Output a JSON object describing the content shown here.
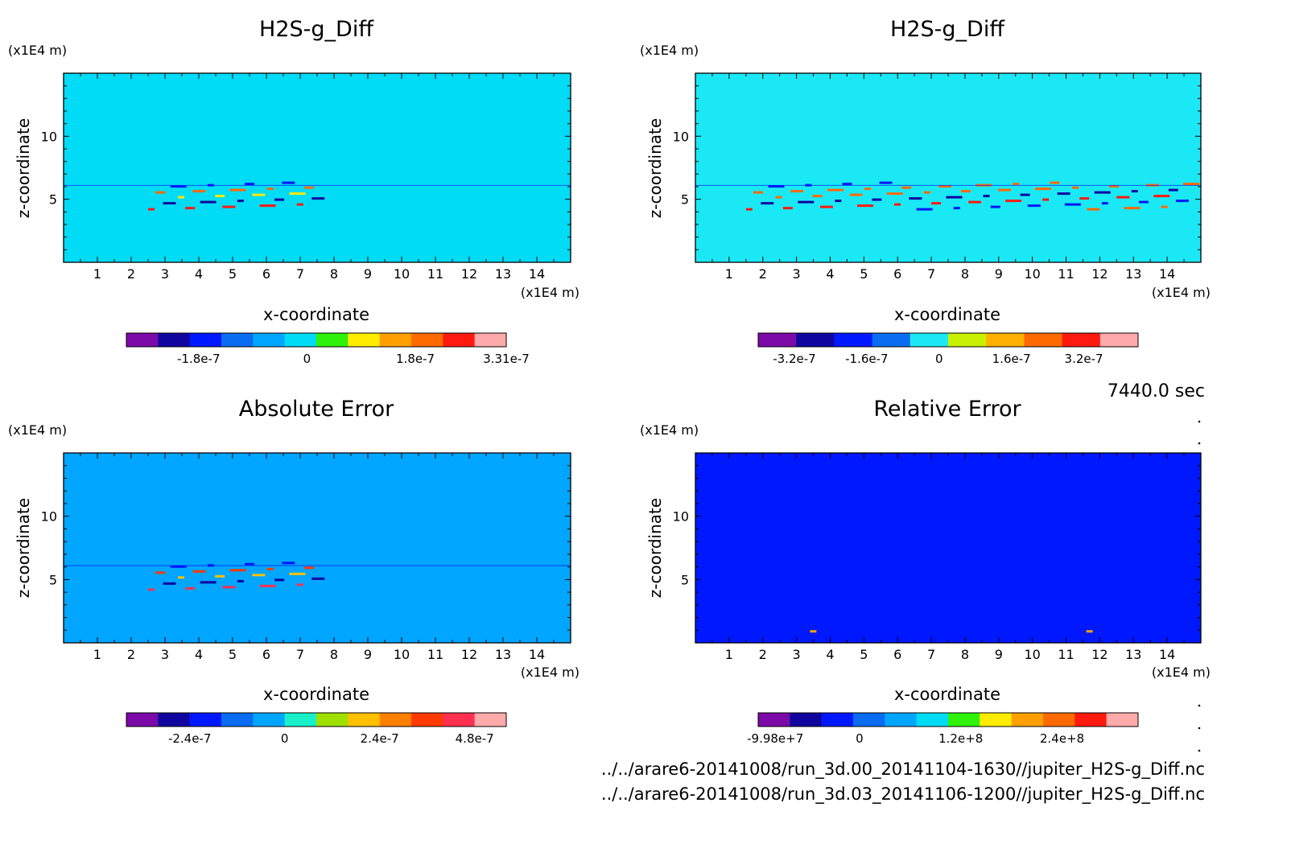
{
  "time_label": "7440.0 sec",
  "file_paths": [
    "../../arare6-20141008/run_3d.00_20141104-1630//jupiter_H2S-g_Diff.nc",
    "../../arare6-20141008/run_3d.03_20141106-1200//jupiter_H2S-g_Diff.nc"
  ],
  "chart_data": [
    {
      "type": "heatmap",
      "title": "H2S-g_Diff",
      "xlabel": "x-coordinate",
      "ylabel": "z-coordinate",
      "x_unit": "(x1E4 m)",
      "y_unit": "(x1E4 m)",
      "xlim": [
        0,
        15
      ],
      "ylim": [
        0,
        15
      ],
      "x_ticks": [
        1,
        2,
        3,
        4,
        5,
        6,
        7,
        8,
        9,
        10,
        11,
        12,
        13,
        14
      ],
      "y_ticks": [
        5,
        10
      ],
      "colorbar": {
        "colors": [
          "#7b0aa8",
          "#10069f",
          "#0018ff",
          "#0a6cf0",
          "#00a6ff",
          "#00dcf5",
          "#2ef20a",
          "#ffec00",
          "#ffa000",
          "#ff6a00",
          "#ff1a10",
          "#ffaaaa"
        ],
        "labels": [
          {
            "text": "-1.8e-7",
            "value": -1.8e-07
          },
          {
            "text": "0",
            "value": 0
          },
          {
            "text": "1.8e-7",
            "value": 1.8e-07
          },
          {
            "text": "3.31e-7",
            "value": 3.31e-07
          }
        ],
        "range": [
          -3e-07,
          3.31e-07
        ]
      },
      "dominant_colors": [
        "#00dcf5",
        "#2ef20a"
      ],
      "hotspot_band": [
        2.5,
        7.5
      ]
    },
    {
      "type": "heatmap",
      "title": "H2S-g_Diff",
      "xlabel": "x-coordinate",
      "ylabel": "z-coordinate",
      "x_unit": "(x1E4 m)",
      "y_unit": "(x1E4 m)",
      "xlim": [
        0,
        15
      ],
      "ylim": [
        0,
        15
      ],
      "x_ticks": [
        1,
        2,
        3,
        4,
        5,
        6,
        7,
        8,
        9,
        10,
        11,
        12,
        13,
        14
      ],
      "y_ticks": [
        5,
        10
      ],
      "colorbar": {
        "colors": [
          "#7b0aa8",
          "#10069f",
          "#0018ff",
          "#0a6cf0",
          "#1be8f5",
          "#c8f000",
          "#ffb000",
          "#ff6a00",
          "#ff1a10",
          "#ffaaaa"
        ],
        "labels": [
          {
            "text": "-3.2e-7",
            "value": -3.2e-07
          },
          {
            "text": "-1.6e-7",
            "value": -1.6e-07
          },
          {
            "text": "0",
            "value": 0
          },
          {
            "text": "1.6e-7",
            "value": 1.6e-07
          },
          {
            "text": "3.2e-7",
            "value": 3.2e-07
          }
        ],
        "range": [
          -4e-07,
          4.4e-07
        ]
      },
      "dominant_colors": [
        "#1be8f5",
        "#d2f000"
      ],
      "hotspot_band": [
        1.5,
        14.5
      ]
    },
    {
      "type": "heatmap",
      "title": "Absolute Error",
      "xlabel": "x-coordinate",
      "ylabel": "z-coordinate",
      "x_unit": "(x1E4 m)",
      "y_unit": "(x1E4 m)",
      "xlim": [
        0,
        15
      ],
      "ylim": [
        0,
        15
      ],
      "x_ticks": [
        1,
        2,
        3,
        4,
        5,
        6,
        7,
        8,
        9,
        10,
        11,
        12,
        13,
        14
      ],
      "y_ticks": [
        5,
        10
      ],
      "colorbar": {
        "colors": [
          "#7b0aa8",
          "#10069f",
          "#0018ff",
          "#0a6cf0",
          "#00a6ff",
          "#18f0c8",
          "#a0e000",
          "#ffc000",
          "#ff8000",
          "#ff3a00",
          "#ff3050",
          "#ffaaaa"
        ],
        "labels": [
          {
            "text": "-2.4e-7",
            "value": -2.4e-07
          },
          {
            "text": "0",
            "value": 0
          },
          {
            "text": "2.4e-7",
            "value": 2.4e-07
          },
          {
            "text": "4.8e-7",
            "value": 4.8e-07
          }
        ],
        "range": [
          -4e-07,
          5.6e-07
        ]
      },
      "dominant_colors": [
        "#00a6ff",
        "#18f0c8"
      ],
      "hotspot_band": [
        2.5,
        7.5
      ]
    },
    {
      "type": "heatmap",
      "title": "Relative Error",
      "xlabel": "x-coordinate",
      "ylabel": "z-coordinate",
      "x_unit": "(x1E4 m)",
      "y_unit": "(x1E4 m)",
      "xlim": [
        0,
        15
      ],
      "ylim": [
        0,
        15
      ],
      "x_ticks": [
        1,
        2,
        3,
        4,
        5,
        6,
        7,
        8,
        9,
        10,
        11,
        12,
        13,
        14
      ],
      "y_ticks": [
        5,
        10
      ],
      "colorbar": {
        "colors": [
          "#7b0aa8",
          "#10069f",
          "#0018ff",
          "#0a6cf0",
          "#00a6ff",
          "#00dcf5",
          "#2ef20a",
          "#ffec00",
          "#ffa000",
          "#ff6a00",
          "#ff1a10",
          "#ffaaaa"
        ],
        "labels": [
          {
            "text": "-9.98e+7",
            "value": -99800000.0
          },
          {
            "text": "0",
            "value": 0
          },
          {
            "text": "1.2e+8",
            "value": 120000000.0
          },
          {
            "text": "2.4e+8",
            "value": 240000000.0
          }
        ],
        "range": [
          -120000000.0,
          330000000.0
        ]
      },
      "dominant_colors": [
        "#0018ff",
        "#0a6cf0"
      ],
      "hotspot_band": null
    }
  ]
}
